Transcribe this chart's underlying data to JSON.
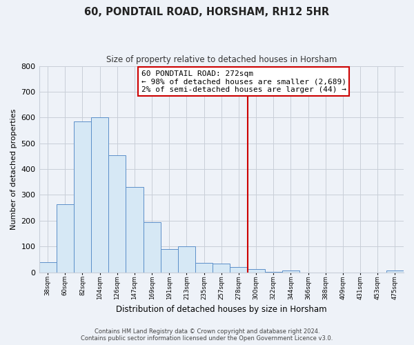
{
  "title": "60, PONDTAIL ROAD, HORSHAM, RH12 5HR",
  "subtitle": "Size of property relative to detached houses in Horsham",
  "xlabel": "Distribution of detached houses by size in Horsham",
  "ylabel": "Number of detached properties",
  "bar_labels": [
    "38sqm",
    "60sqm",
    "82sqm",
    "104sqm",
    "126sqm",
    "147sqm",
    "169sqm",
    "191sqm",
    "213sqm",
    "235sqm",
    "257sqm",
    "278sqm",
    "300sqm",
    "322sqm",
    "344sqm",
    "366sqm",
    "388sqm",
    "409sqm",
    "431sqm",
    "453sqm",
    "475sqm"
  ],
  "bar_heights": [
    38,
    265,
    585,
    600,
    453,
    330,
    195,
    91,
    100,
    37,
    33,
    20,
    12,
    2,
    8,
    0,
    0,
    0,
    0,
    0,
    7
  ],
  "bar_color": "#d6e8f5",
  "bar_edge_color": "#5b8fc9",
  "vline_color": "#cc0000",
  "annotation_title": "60 PONDTAIL ROAD: 272sqm",
  "annotation_line1": "← 98% of detached houses are smaller (2,689)",
  "annotation_line2": "2% of semi-detached houses are larger (44) →",
  "ylim": [
    0,
    800
  ],
  "yticks": [
    0,
    100,
    200,
    300,
    400,
    500,
    600,
    700,
    800
  ],
  "footer1": "Contains HM Land Registry data © Crown copyright and database right 2024.",
  "footer2": "Contains public sector information licensed under the Open Government Licence v3.0.",
  "bg_color": "#eef2f8",
  "plot_bg_color": "#eef2f8",
  "grid_color": "#c8ced8"
}
